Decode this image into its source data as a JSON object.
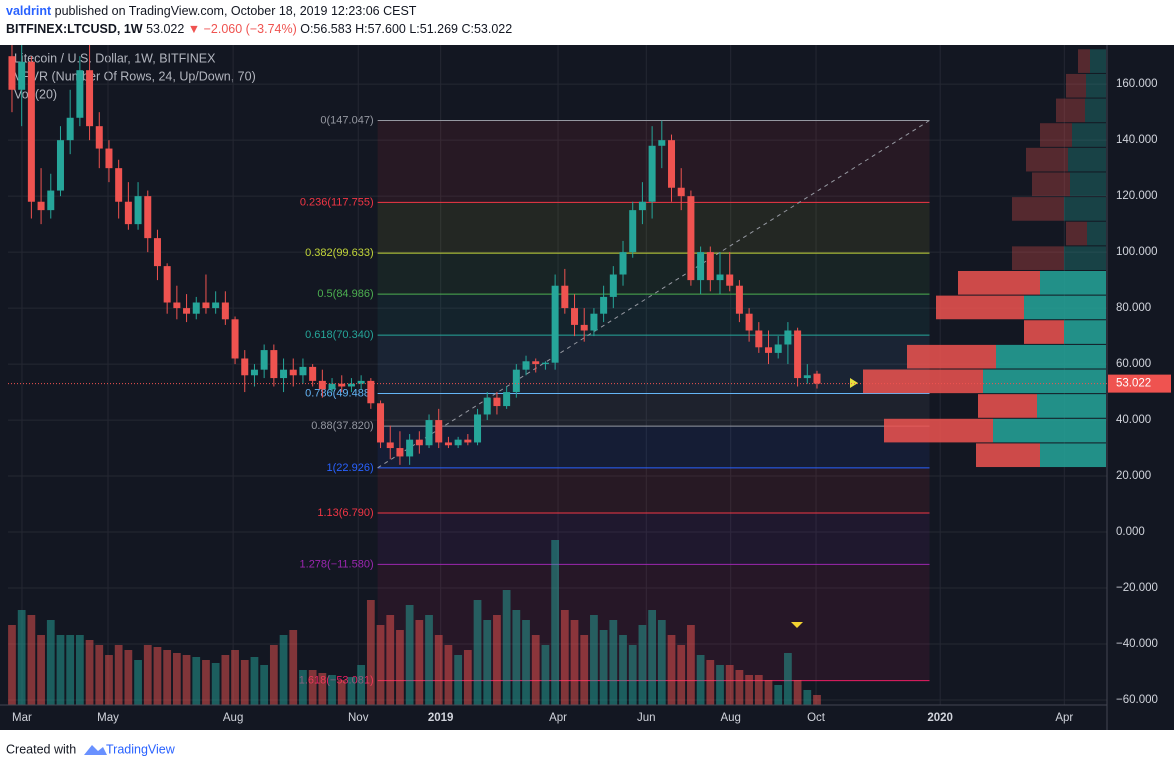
{
  "header": {
    "author": "valdrint",
    "published": "published on TradingView.com, October 18, 2019 12:23:06 CEST",
    "symbol": "BITFINEX:LTCUSD, 1W",
    "price": "53.022",
    "change": "▼ −2.060 (−3.74%)",
    "ohlc": "O:56.583 H:57.600 L:51.269 C:53.022"
  },
  "legend": {
    "instrument": "Litecoin / U.S. Dollar, 1W, BITFINEX",
    "vpvr": "VPVR (Number Of Rows, 24, Up/Down, 70)",
    "volume": "Vol (20)"
  },
  "footer": {
    "created": "Created with",
    "brand": "TradingView"
  },
  "chart_data": {
    "type": "candlestick",
    "up_color": "#26a69a",
    "down_color": "#ef5350",
    "grid": true,
    "xlim": [
      -0.41,
      112.9
    ],
    "xticks": [
      {
        "value": 1.03,
        "label": "Mar"
      },
      {
        "value": 9.9,
        "label": "May"
      },
      {
        "value": 22.8,
        "label": "Aug"
      },
      {
        "value": 35.7,
        "label": "Nov"
      },
      {
        "value": 44.2,
        "label": "2019"
      },
      {
        "value": 56.3,
        "label": "Apr"
      },
      {
        "value": 65.4,
        "label": "Jun"
      },
      {
        "value": 74.1,
        "label": "Aug"
      },
      {
        "value": 82.9,
        "label": "Oct"
      },
      {
        "value": 95.7,
        "label": "2020"
      },
      {
        "value": 108.5,
        "label": "Apr"
      }
    ],
    "ylim": [
      -61.8,
      174
    ],
    "yticks": [
      {
        "value": 160,
        "label": "160.000"
      },
      {
        "value": 140,
        "label": "140.000"
      },
      {
        "value": 120,
        "label": "120.000"
      },
      {
        "value": 100,
        "label": "100.000"
      },
      {
        "value": 80,
        "label": "80.000"
      },
      {
        "value": 60,
        "label": "60.000"
      },
      {
        "value": 40,
        "label": "40.000"
      },
      {
        "value": 20,
        "label": "20.000"
      },
      {
        "value": 0,
        "label": "0.000"
      },
      {
        "value": -20,
        "label": "−20.000"
      },
      {
        "value": -40,
        "label": "−40.000"
      },
      {
        "value": -60,
        "label": "−60.000"
      }
    ],
    "candles": [
      [
        170,
        182,
        150,
        158
      ],
      [
        158,
        176,
        145,
        168
      ],
      [
        168,
        170,
        112,
        118
      ],
      [
        118,
        130,
        110,
        115
      ],
      [
        115,
        128,
        112,
        122
      ],
      [
        122,
        145,
        120,
        140
      ],
      [
        140,
        158,
        135,
        148
      ],
      [
        148,
        170,
        145,
        165
      ],
      [
        165,
        175,
        140,
        145
      ],
      [
        145,
        150,
        130,
        137
      ],
      [
        137,
        140,
        125,
        130
      ],
      [
        130,
        133,
        112,
        118
      ],
      [
        118,
        125,
        108,
        110
      ],
      [
        110,
        125,
        108,
        120
      ],
      [
        120,
        122,
        100,
        105
      ],
      [
        105,
        108,
        90,
        95
      ],
      [
        95,
        96,
        78,
        82
      ],
      [
        82,
        88,
        76,
        80
      ],
      [
        80,
        85,
        75,
        78
      ],
      [
        78,
        84,
        76,
        82
      ],
      [
        82,
        92,
        78,
        80
      ],
      [
        80,
        86,
        78,
        82
      ],
      [
        82,
        86,
        74,
        76
      ],
      [
        76,
        77,
        60,
        62
      ],
      [
        62,
        65,
        50,
        56
      ],
      [
        56,
        60,
        52,
        58
      ],
      [
        58,
        67,
        55,
        65
      ],
      [
        65,
        67,
        52,
        55
      ],
      [
        55,
        62,
        50,
        58
      ],
      [
        58,
        62,
        52,
        56
      ],
      [
        56,
        62,
        53,
        59
      ],
      [
        59,
        60,
        52,
        54
      ],
      [
        54,
        58,
        48,
        51
      ],
      [
        51,
        55,
        50,
        53
      ],
      [
        53,
        56,
        50,
        52
      ],
      [
        52,
        55,
        50,
        53
      ],
      [
        53,
        56,
        51,
        54
      ],
      [
        54,
        55,
        44,
        46
      ],
      [
        46,
        47,
        30,
        32
      ],
      [
        32,
        38,
        26,
        30
      ],
      [
        30,
        36,
        24,
        27
      ],
      [
        27,
        35,
        24,
        33
      ],
      [
        33,
        36,
        28,
        31
      ],
      [
        31,
        42,
        30,
        40
      ],
      [
        40,
        44,
        30,
        32
      ],
      [
        32,
        34,
        30,
        31
      ],
      [
        31,
        34,
        30,
        33
      ],
      [
        33,
        35,
        31,
        32
      ],
      [
        32,
        44,
        31,
        42
      ],
      [
        42,
        50,
        40,
        48
      ],
      [
        48,
        50,
        42,
        45
      ],
      [
        45,
        52,
        44,
        50
      ],
      [
        50,
        60,
        48,
        58
      ],
      [
        58,
        63,
        56,
        61
      ],
      [
        61,
        62,
        57,
        60
      ],
      [
        60,
        61,
        58,
        60.5
      ],
      [
        60.5,
        92,
        58,
        88
      ],
      [
        88,
        94,
        78,
        80
      ],
      [
        80,
        85,
        70,
        74
      ],
      [
        74,
        80,
        68,
        72
      ],
      [
        72,
        80,
        70,
        78
      ],
      [
        78,
        88,
        75,
        84
      ],
      [
        84,
        95,
        80,
        92
      ],
      [
        92,
        104,
        88,
        100
      ],
      [
        100,
        118,
        98,
        115
      ],
      [
        115,
        125,
        110,
        118
      ],
      [
        118,
        145,
        112,
        138
      ],
      [
        138,
        147,
        130,
        140
      ],
      [
        140,
        142,
        118,
        123
      ],
      [
        123,
        130,
        115,
        120
      ],
      [
        120,
        122,
        88,
        90
      ],
      [
        90,
        102,
        85,
        100
      ],
      [
        100,
        102,
        86,
        90
      ],
      [
        90,
        100,
        85,
        92
      ],
      [
        92,
        100,
        86,
        88
      ],
      [
        88,
        90,
        75,
        78
      ],
      [
        78,
        80,
        68,
        72
      ],
      [
        72,
        75,
        64,
        66
      ],
      [
        66,
        72,
        60,
        64
      ],
      [
        64,
        70,
        62,
        67
      ],
      [
        67,
        75,
        60,
        72
      ],
      [
        72,
        73,
        52,
        55
      ],
      [
        55,
        60,
        53,
        56
      ],
      [
        56.583,
        57.6,
        51.269,
        53.022
      ]
    ],
    "volume": [
      80,
      95,
      90,
      70,
      85,
      70,
      70,
      70,
      65,
      60,
      50,
      60,
      55,
      45,
      60,
      58,
      55,
      52,
      50,
      48,
      45,
      42,
      50,
      55,
      45,
      48,
      40,
      60,
      70,
      75,
      35,
      35,
      32,
      30,
      25,
      28,
      40,
      105,
      80,
      90,
      75,
      100,
      85,
      90,
      70,
      60,
      50,
      55,
      105,
      85,
      90,
      115,
      95,
      85,
      70,
      60,
      165,
      95,
      85,
      70,
      90,
      75,
      85,
      70,
      60,
      80,
      95,
      85,
      70,
      60,
      80,
      50,
      45,
      40,
      40,
      35,
      30,
      30,
      25,
      20,
      52,
      25,
      15,
      10
    ],
    "fib": {
      "x_range": [
        37.7,
        94.6
      ],
      "levels": [
        {
          "label": "0(147.047)",
          "value": 147.047,
          "color": "#9598a1"
        },
        {
          "label": "0.236(117.755)",
          "value": 117.755,
          "color": "#f23645"
        },
        {
          "label": "0.382(99.633)",
          "value": 99.633,
          "color": "#c3d639"
        },
        {
          "label": "0.5(84.986)",
          "value": 84.986,
          "color": "#4caf50"
        },
        {
          "label": "0.618(70.340)",
          "value": 70.34,
          "color": "#26a69a"
        },
        {
          "label": "0.786(49.488)",
          "value": 49.488,
          "color": "#64b5f6"
        },
        {
          "label": "0.88(37.820)",
          "value": 37.82,
          "color": "#9598a1"
        },
        {
          "label": "1(22.926)",
          "value": 22.926,
          "color": "#2962ff"
        },
        {
          "label": "1.13(6.790)",
          "value": 6.79,
          "color": "#f23645"
        },
        {
          "label": "1.278(−11.580)",
          "value": -11.58,
          "color": "#9c27b0"
        },
        {
          "label": "1.618(−53.081)",
          "value": -53.081,
          "color": "#e91e63"
        }
      ]
    },
    "vpvr": {
      "rows_from": 22.86,
      "row_size": 8.8,
      "value_area": [
        22.86,
        93.26
      ],
      "up_color": "#26a69a",
      "down_color": "#ef5350",
      "rows": [
        {
          "up": 66,
          "down": 64
        },
        {
          "up": 113,
          "down": 109
        },
        {
          "up": 69,
          "down": 59
        },
        {
          "up": 123,
          "down": 120
        },
        {
          "up": 110,
          "down": 89
        },
        {
          "up": 42,
          "down": 40
        },
        {
          "up": 82,
          "down": 88
        },
        {
          "up": 66,
          "down": 82
        },
        {
          "up": 42,
          "down": 52
        },
        {
          "up": 19,
          "down": 21
        },
        {
          "up": 42,
          "down": 52
        },
        {
          "up": 36,
          "down": 38
        },
        {
          "up": 38,
          "down": 42
        },
        {
          "up": 34,
          "down": 32
        },
        {
          "up": 21,
          "down": 29
        },
        {
          "up": 20,
          "down": 20
        },
        {
          "up": 16,
          "down": 12
        }
      ]
    }
  }
}
